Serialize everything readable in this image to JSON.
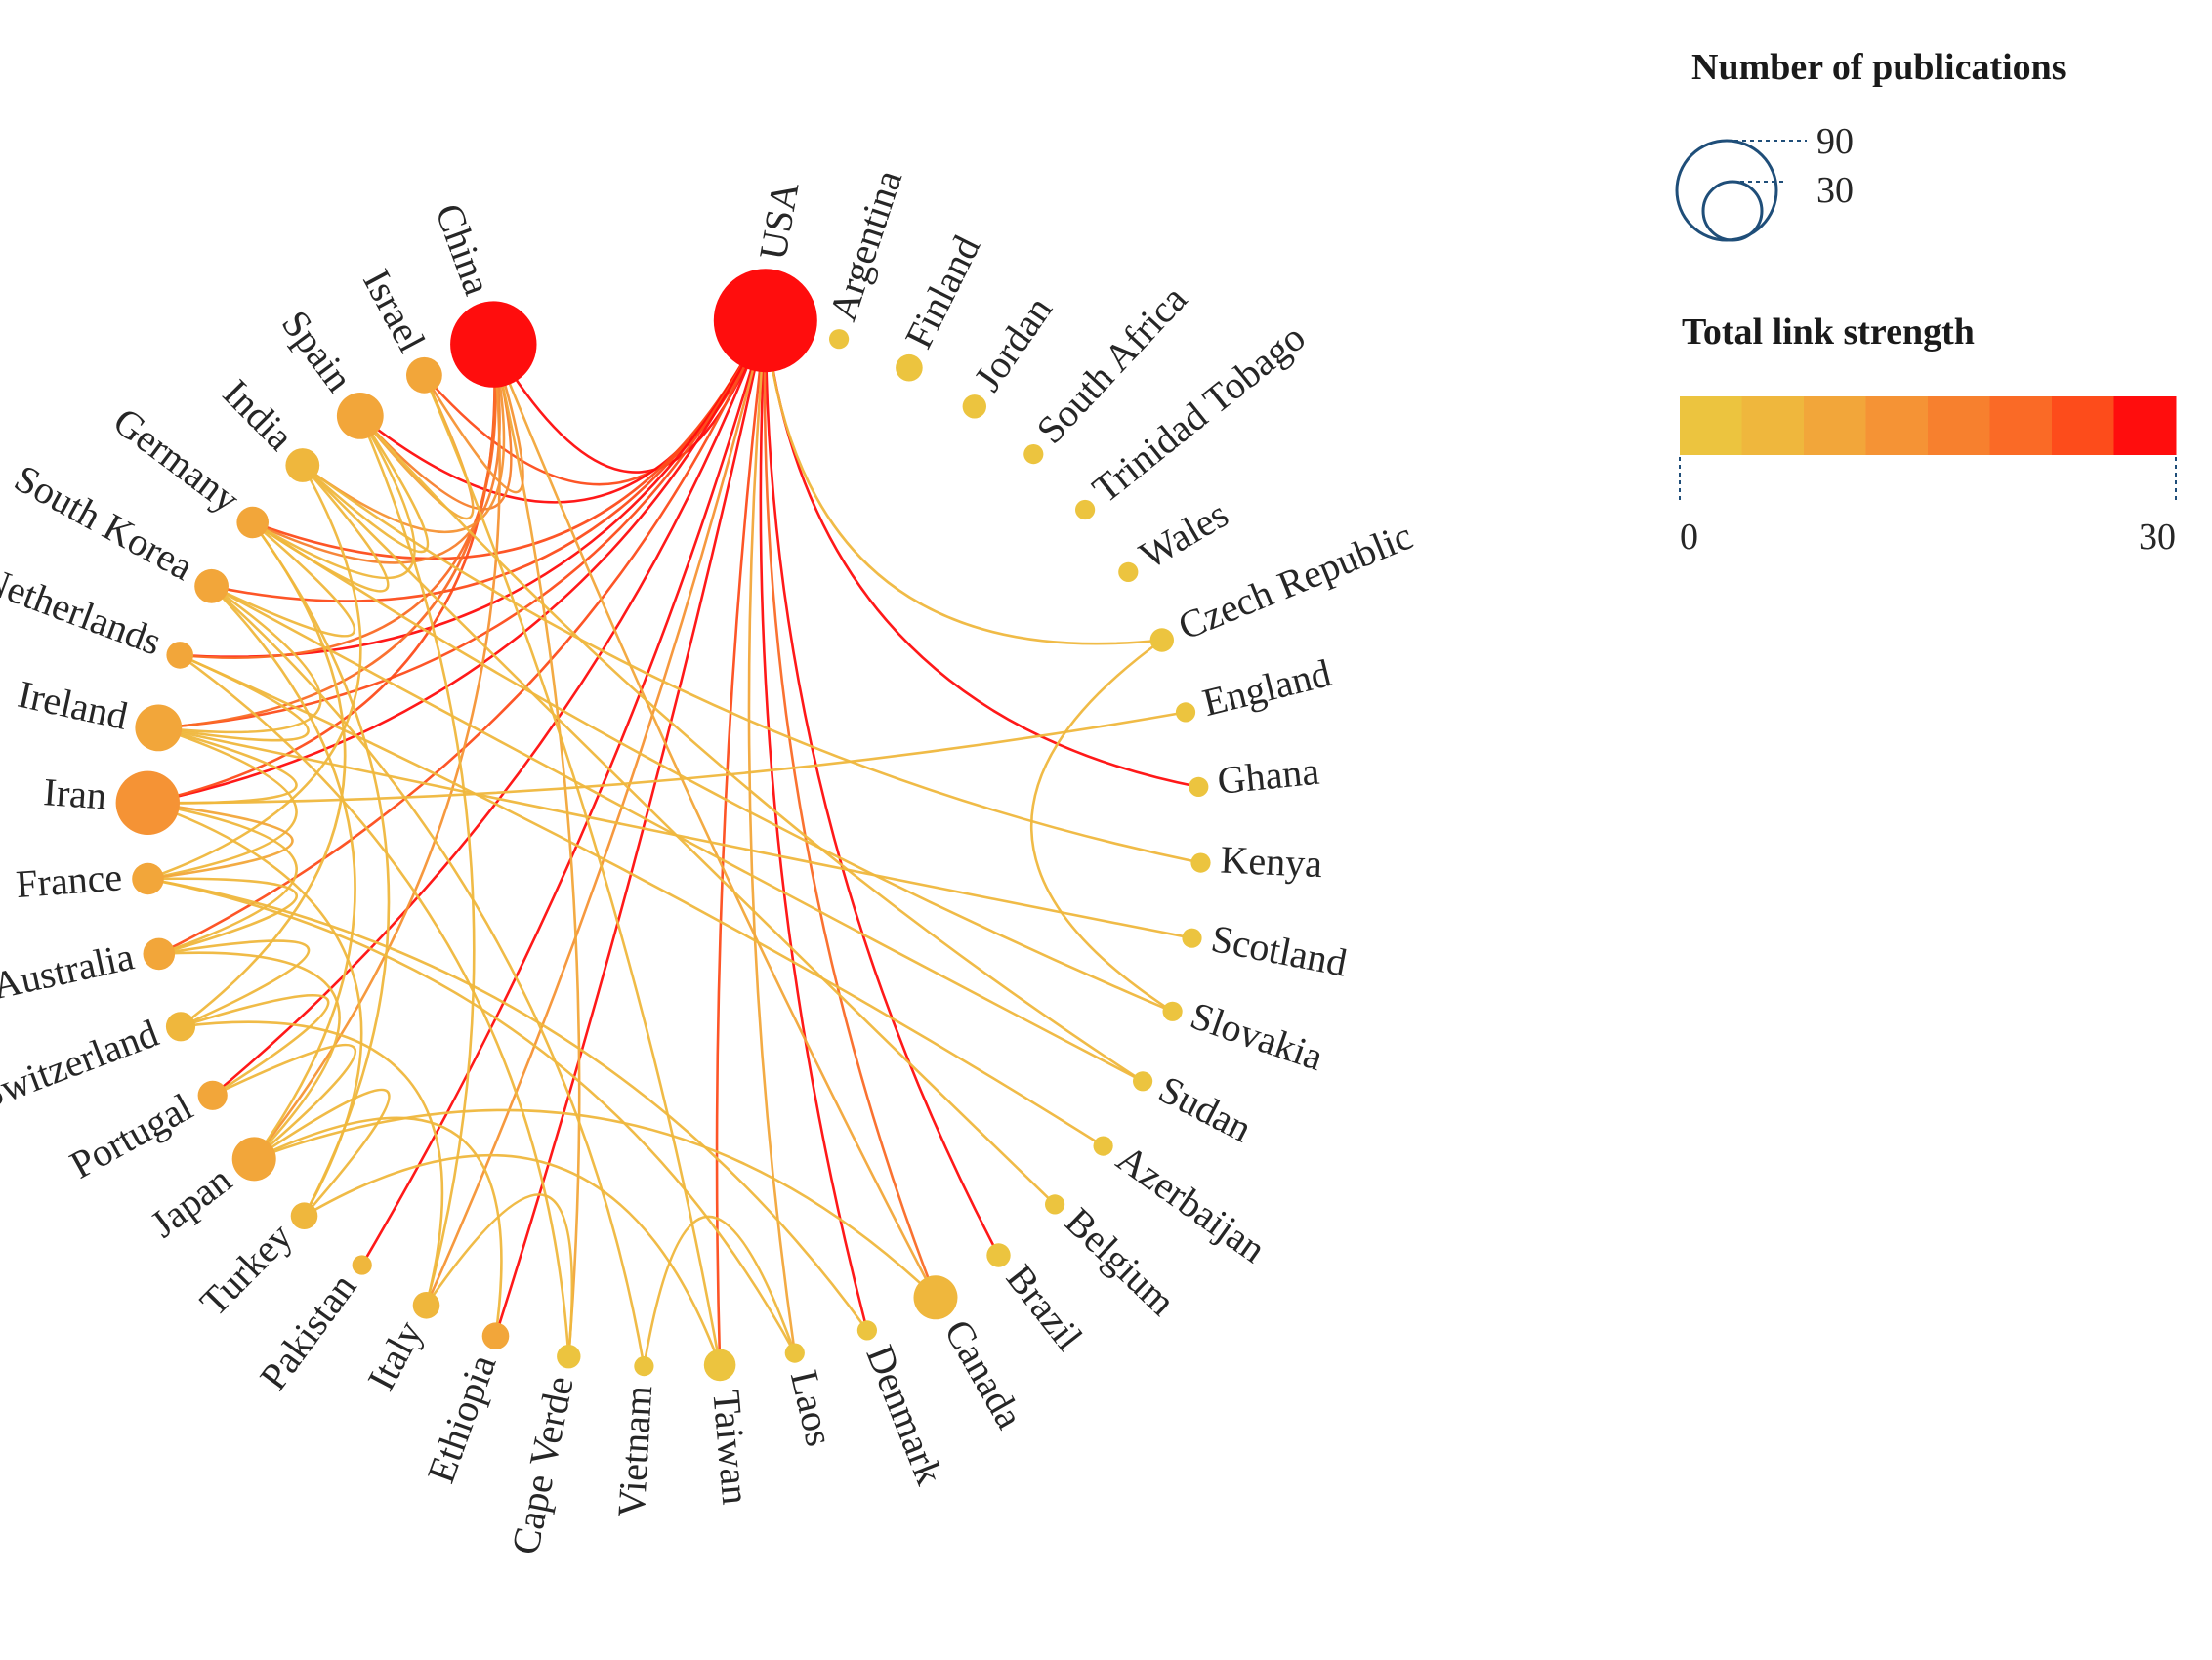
{
  "chart_data": {
    "type": "chord-network",
    "title": "",
    "layout": "circular",
    "size_encoding": "publications",
    "color_encoding": "total_link_strength",
    "color_scale": {
      "min": 0,
      "max": 30,
      "colors": [
        "#ecc43f",
        "#efb73d",
        "#f2a63a",
        "#f59335",
        "#f7802e",
        "#fa6a26",
        "#fd4c1b",
        "#ff0d0d"
      ]
    },
    "nodes": [
      {
        "name": "USA",
        "publications": 90,
        "link_strength": 30
      },
      {
        "name": "Argentina",
        "publications": 1,
        "link_strength": 0
      },
      {
        "name": "Finland",
        "publications": 3,
        "link_strength": 0
      },
      {
        "name": "Jordan",
        "publications": 2,
        "link_strength": 0
      },
      {
        "name": "South Africa",
        "publications": 1,
        "link_strength": 0
      },
      {
        "name": "Trinidad Tobago",
        "publications": 1,
        "link_strength": 0
      },
      {
        "name": "Wales",
        "publications": 1,
        "link_strength": 0
      },
      {
        "name": "Czech Republic",
        "publications": 2,
        "link_strength": 1
      },
      {
        "name": "England",
        "publications": 1,
        "link_strength": 1
      },
      {
        "name": "Ghana",
        "publications": 1,
        "link_strength": 1
      },
      {
        "name": "Kenya",
        "publications": 1,
        "link_strength": 1
      },
      {
        "name": "Scotland",
        "publications": 1,
        "link_strength": 1
      },
      {
        "name": "Slovakia",
        "publications": 1,
        "link_strength": 1
      },
      {
        "name": "Sudan",
        "publications": 1,
        "link_strength": 1
      },
      {
        "name": "Azerbaijan",
        "publications": 1,
        "link_strength": 1
      },
      {
        "name": "Belgium",
        "publications": 1,
        "link_strength": 1
      },
      {
        "name": "Brazil",
        "publications": 2,
        "link_strength": 1
      },
      {
        "name": "Canada",
        "publications": 12,
        "link_strength": 6
      },
      {
        "name": "Denmark",
        "publications": 1,
        "link_strength": 2
      },
      {
        "name": "Laos",
        "publications": 1,
        "link_strength": 2
      },
      {
        "name": "Taiwan",
        "publications": 5,
        "link_strength": 3
      },
      {
        "name": "Vietnam",
        "publications": 1,
        "link_strength": 2
      },
      {
        "name": "Cape Verde",
        "publications": 2,
        "link_strength": 3
      },
      {
        "name": "Ethiopia",
        "publications": 3,
        "link_strength": 9
      },
      {
        "name": "Italy",
        "publications": 3,
        "link_strength": 4
      },
      {
        "name": "Pakistan",
        "publications": 1,
        "link_strength": 5
      },
      {
        "name": "Turkey",
        "publications": 3,
        "link_strength": 6
      },
      {
        "name": "Japan",
        "publications": 12,
        "link_strength": 8
      },
      {
        "name": "Portugal",
        "publications": 4,
        "link_strength": 9
      },
      {
        "name": "Switzerland",
        "publications": 4,
        "link_strength": 6
      },
      {
        "name": "Australia",
        "publications": 5,
        "link_strength": 10
      },
      {
        "name": "France",
        "publications": 5,
        "link_strength": 9
      },
      {
        "name": "Iran",
        "publications": 30,
        "link_strength": 12
      },
      {
        "name": "Ireland",
        "publications": 14,
        "link_strength": 11
      },
      {
        "name": "Netherlands",
        "publications": 3,
        "link_strength": 10
      },
      {
        "name": "South Korea",
        "publications": 6,
        "link_strength": 8
      },
      {
        "name": "Germany",
        "publications": 5,
        "link_strength": 9
      },
      {
        "name": "India",
        "publications": 6,
        "link_strength": 7
      },
      {
        "name": "Spain",
        "publications": 14,
        "link_strength": 10
      },
      {
        "name": "Israel",
        "publications": 7,
        "link_strength": 9
      },
      {
        "name": "China",
        "publications": 60,
        "link_strength": 30
      }
    ],
    "links": [
      [
        "USA",
        "China",
        30
      ],
      [
        "USA",
        "Israel",
        24
      ],
      [
        "USA",
        "Spain",
        28
      ],
      [
        "USA",
        "Germany",
        26
      ],
      [
        "USA",
        "South Korea",
        24
      ],
      [
        "USA",
        "Netherlands",
        27
      ],
      [
        "USA",
        "Ireland",
        25
      ],
      [
        "USA",
        "Iran",
        28
      ],
      [
        "USA",
        "Australia",
        26
      ],
      [
        "USA",
        "Portugal",
        28
      ],
      [
        "USA",
        "Pakistan",
        29
      ],
      [
        "USA",
        "Ethiopia",
        29
      ],
      [
        "USA",
        "Denmark",
        27
      ],
      [
        "USA",
        "Brazil",
        29
      ],
      [
        "USA",
        "Ghana",
        30
      ],
      [
        "USA",
        "Canada",
        22
      ],
      [
        "USA",
        "Taiwan",
        23
      ],
      [
        "USA",
        "Italy",
        14
      ],
      [
        "USA",
        "Czech Republic",
        6
      ],
      [
        "USA",
        "Laos",
        8
      ],
      [
        "China",
        "Iran",
        26
      ],
      [
        "China",
        "Netherlands",
        20
      ],
      [
        "China",
        "Ireland",
        22
      ],
      [
        "China",
        "Spain",
        18
      ],
      [
        "China",
        "India",
        14
      ],
      [
        "China",
        "Germany",
        16
      ],
      [
        "China",
        "Japan",
        12
      ],
      [
        "China",
        "Canada",
        10
      ],
      [
        "China",
        "Cape Verde",
        9
      ],
      [
        "China",
        "Israel",
        14
      ],
      [
        "Israel",
        "Spain",
        8
      ],
      [
        "Israel",
        "Taiwan",
        6
      ],
      [
        "Spain",
        "India",
        7
      ],
      [
        "Spain",
        "Germany",
        6
      ],
      [
        "Spain",
        "Sudan",
        5
      ],
      [
        "India",
        "Germany",
        5
      ],
      [
        "India",
        "Belgium",
        4
      ],
      [
        "India",
        "Kenya",
        4
      ],
      [
        "India",
        "France",
        5
      ],
      [
        "Germany",
        "South Korea",
        6
      ],
      [
        "Germany",
        "Switzerland",
        5
      ],
      [
        "Germany",
        "Slovakia",
        4
      ],
      [
        "Germany",
        "Turkey",
        4
      ],
      [
        "South Korea",
        "Ireland",
        6
      ],
      [
        "South Korea",
        "Japan",
        7
      ],
      [
        "South Korea",
        "Vietnam",
        4
      ],
      [
        "Netherlands",
        "Ireland",
        6
      ],
      [
        "Netherlands",
        "Azerbaijan",
        4
      ],
      [
        "Netherlands",
        "Cape Verde",
        4
      ],
      [
        "Ireland",
        "Iran",
        7
      ],
      [
        "Ireland",
        "France",
        6
      ],
      [
        "Ireland",
        "Scotland",
        4
      ],
      [
        "Iran",
        "France",
        8
      ],
      [
        "Iran",
        "Australia",
        7
      ],
      [
        "Iran",
        "England",
        5
      ],
      [
        "Iran",
        "Turkey",
        5
      ],
      [
        "France",
        "Australia",
        6
      ],
      [
        "France",
        "Denmark",
        4
      ],
      [
        "France",
        "Laos",
        4
      ],
      [
        "Australia",
        "Switzerland",
        6
      ],
      [
        "Australia",
        "Japan",
        5
      ],
      [
        "Switzerland",
        "Portugal",
        5
      ],
      [
        "Switzerland",
        "Italy",
        4
      ],
      [
        "Portugal",
        "Japan",
        5
      ],
      [
        "Japan",
        "Turkey",
        6
      ],
      [
        "Japan",
        "Ethiopia",
        5
      ],
      [
        "Japan",
        "Canada",
        5
      ],
      [
        "Turkey",
        "Taiwan",
        4
      ],
      [
        "Italy",
        "Cape Verde",
        4
      ],
      [
        "Vietnam",
        "Laos",
        5
      ],
      [
        "Czech Republic",
        "Slovakia",
        4
      ],
      [
        "South Korea",
        "Sudan",
        4
      ],
      [
        "Spain",
        "Italy",
        5
      ]
    ],
    "legend": {
      "size_title": "Number of publications",
      "size_values": [
        "90",
        "30"
      ],
      "color_title": "Total link strength",
      "color_min_label": "0",
      "color_max_label": "30"
    }
  }
}
